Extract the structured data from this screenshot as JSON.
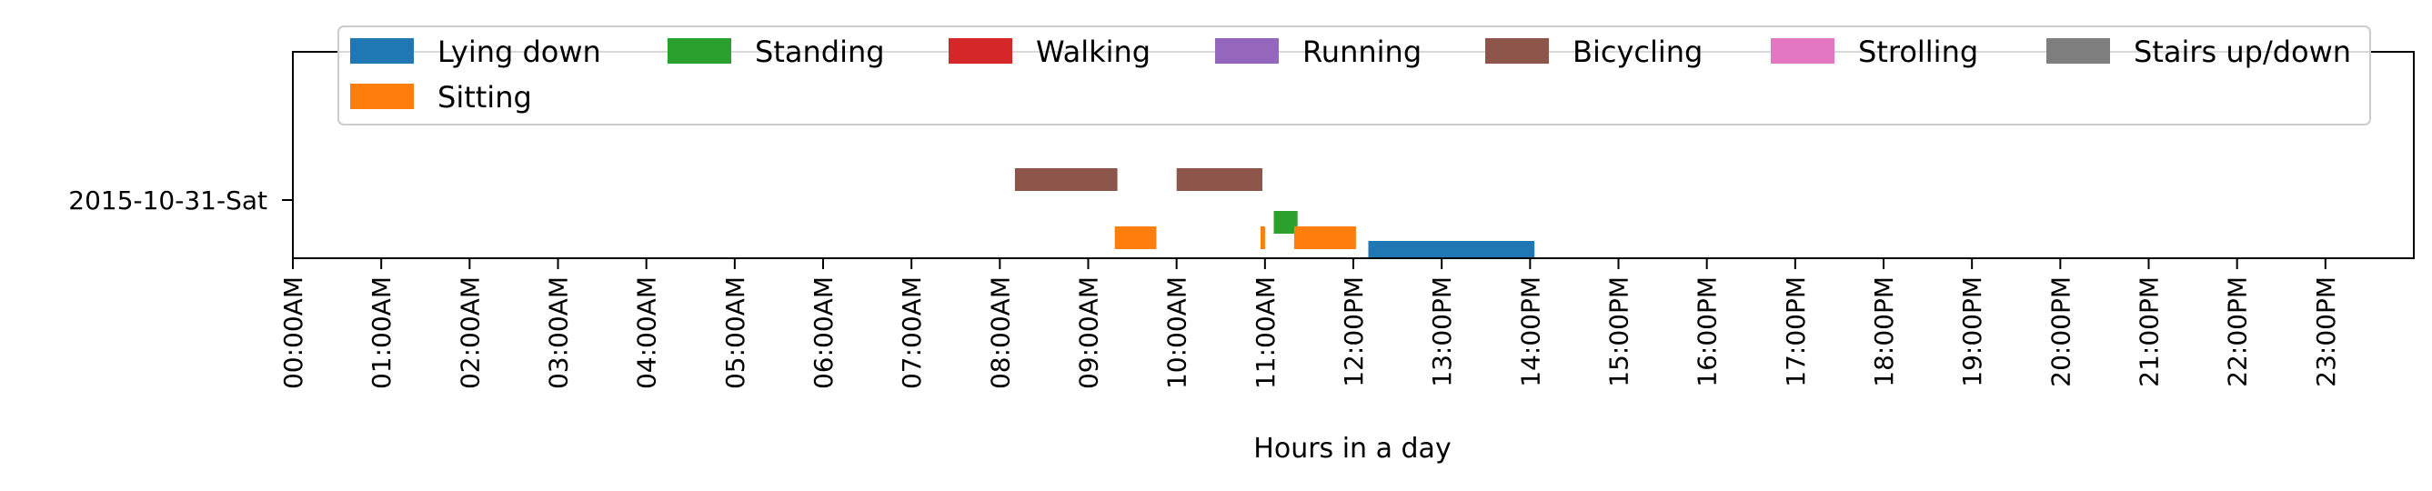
{
  "chart_data": {
    "type": "timeline",
    "xlabel": "Hours in a day",
    "ylabel": "",
    "xlim": [
      0,
      24
    ],
    "x_tick_values": [
      0,
      1,
      2,
      3,
      4,
      5,
      6,
      7,
      8,
      9,
      10,
      11,
      12,
      13,
      14,
      15,
      16,
      17,
      18,
      19,
      20,
      21,
      22,
      23
    ],
    "x_tick_labels": [
      "00:00AM",
      "01:00AM",
      "02:00AM",
      "03:00AM",
      "04:00AM",
      "05:00AM",
      "06:00AM",
      "07:00AM",
      "08:00AM",
      "09:00AM",
      "10:00AM",
      "11:00AM",
      "12:00PM",
      "13:00PM",
      "14:00PM",
      "15:00PM",
      "16:00PM",
      "17:00PM",
      "18:00PM",
      "19:00PM",
      "20:00PM",
      "21:00PM",
      "22:00PM",
      "23:00PM"
    ],
    "categories": [
      "2015-10-31-Sat"
    ],
    "legend_position": "top",
    "grid": false,
    "series": [
      {
        "name": "Lying down",
        "color": "#1f77b4",
        "intervals": [
          [
            12.17,
            14.05
          ]
        ]
      },
      {
        "name": "Standing",
        "color": "#2ca02c",
        "intervals": [
          [
            11.1,
            11.37
          ]
        ]
      },
      {
        "name": "Walking",
        "color": "#d62728",
        "intervals": []
      },
      {
        "name": "Running",
        "color": "#9467bd",
        "intervals": []
      },
      {
        "name": "Bicycling",
        "color": "#8c564b",
        "intervals": [
          [
            8.17,
            9.33
          ],
          [
            10.0,
            10.97
          ]
        ]
      },
      {
        "name": "Strolling",
        "color": "#e377c2",
        "intervals": []
      },
      {
        "name": "Stairs up/down",
        "color": "#7f7f7f",
        "intervals": []
      },
      {
        "name": "Sitting",
        "color": "#ff7f0e",
        "intervals": [
          [
            9.3,
            9.77
          ],
          [
            10.95,
            11.0
          ],
          [
            11.33,
            12.03
          ]
        ]
      }
    ]
  }
}
